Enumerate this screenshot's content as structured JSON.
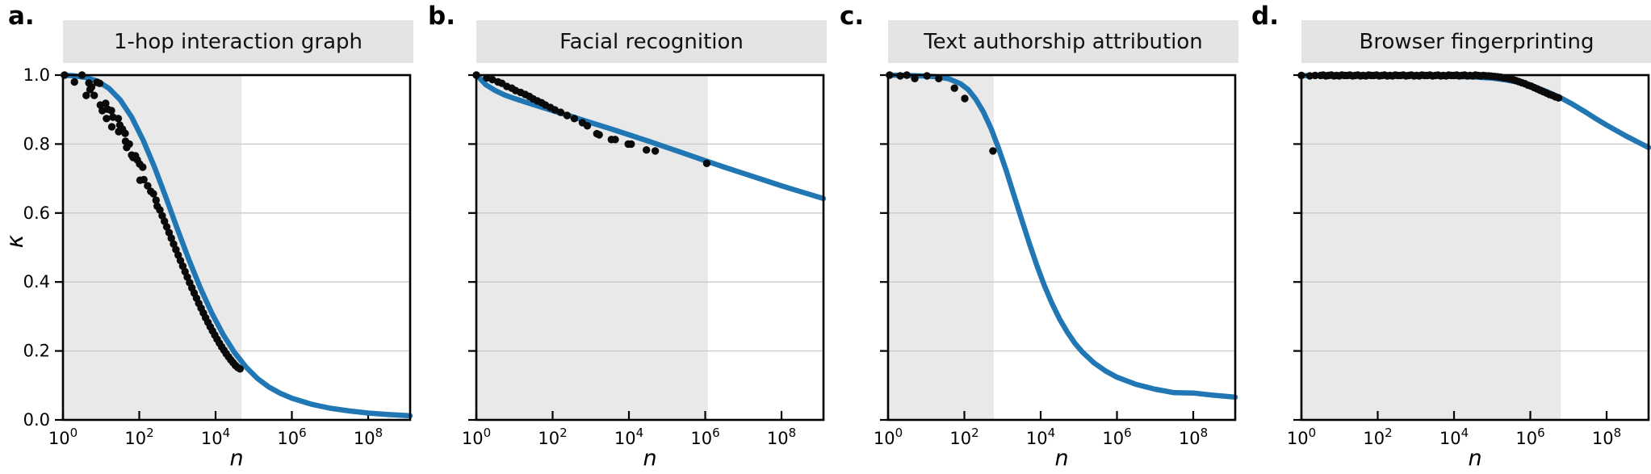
{
  "figure": {
    "background": "#ffffff",
    "colors": {
      "curve": "#2077b4",
      "points": "#0a0a0a",
      "shaded_region": "#e9e9e9",
      "title_box": "#e4e4e4",
      "grid": "#c9c9c9",
      "spine": "#000000",
      "tick_text": "#000000"
    }
  },
  "chart_data": [
    {
      "type": "line+scatter",
      "panel_label": "a.",
      "title": "1-hop interaction graph",
      "xlabel": "n",
      "ylabel": "κ",
      "xscale": "log",
      "xlim_log10": [
        0,
        9.1
      ],
      "ylim": [
        0,
        1
      ],
      "xtick_exponents": [
        0,
        2,
        4,
        6,
        8
      ],
      "ytick_labels": [
        "1.0",
        "0.8",
        "0.6",
        "0.4",
        "0.2",
        "0.0"
      ],
      "shade_end_log10": 4.68,
      "curve_points": [
        [
          0,
          1.0
        ],
        [
          0.3,
          0.998
        ],
        [
          0.6,
          0.993
        ],
        [
          0.9,
          0.983
        ],
        [
          1.2,
          0.962
        ],
        [
          1.5,
          0.928
        ],
        [
          1.8,
          0.878
        ],
        [
          2.1,
          0.812
        ],
        [
          2.4,
          0.733
        ],
        [
          2.7,
          0.645
        ],
        [
          3.0,
          0.553
        ],
        [
          3.3,
          0.465
        ],
        [
          3.6,
          0.383
        ],
        [
          3.9,
          0.31
        ],
        [
          4.2,
          0.247
        ],
        [
          4.5,
          0.195
        ],
        [
          4.8,
          0.153
        ],
        [
          5.1,
          0.12
        ],
        [
          5.4,
          0.095
        ],
        [
          5.7,
          0.077
        ],
        [
          6.0,
          0.063
        ],
        [
          6.5,
          0.046
        ],
        [
          7.0,
          0.034
        ],
        [
          7.5,
          0.026
        ],
        [
          8.0,
          0.02
        ],
        [
          8.5,
          0.016
        ],
        [
          9.1,
          0.012
        ]
      ],
      "scatter_points": [
        [
          0.04,
          1.0
        ],
        [
          0.3,
          0.98
        ],
        [
          0.5,
          1.0
        ],
        [
          0.61,
          0.941
        ],
        [
          0.68,
          0.977
        ],
        [
          0.71,
          0.958
        ],
        [
          0.75,
          0.965
        ],
        [
          0.82,
          0.941
        ],
        [
          0.89,
          0.979
        ],
        [
          0.96,
          0.976
        ],
        [
          0.98,
          0.913
        ],
        [
          1.03,
          0.897
        ],
        [
          1.12,
          0.918
        ],
        [
          1.14,
          0.874
        ],
        [
          1.17,
          0.901
        ],
        [
          1.27,
          0.897
        ],
        [
          1.28,
          0.85
        ],
        [
          1.31,
          0.878
        ],
        [
          1.45,
          0.874
        ],
        [
          1.46,
          0.836
        ],
        [
          1.49,
          0.855
        ],
        [
          1.56,
          0.843
        ],
        [
          1.63,
          0.831
        ],
        [
          1.64,
          0.808
        ],
        [
          1.67,
          0.79
        ],
        [
          1.74,
          0.8
        ],
        [
          1.8,
          0.768
        ],
        [
          1.84,
          0.761
        ],
        [
          1.9,
          0.766
        ],
        [
          1.95,
          0.754
        ],
        [
          2.01,
          0.742
        ],
        [
          2.02,
          0.695
        ],
        [
          2.09,
          0.733
        ],
        [
          2.12,
          0.697
        ],
        [
          2.22,
          0.679
        ],
        [
          2.3,
          0.663
        ],
        [
          2.37,
          0.656
        ],
        [
          2.44,
          0.637
        ],
        [
          2.47,
          0.62
        ],
        [
          2.54,
          0.609
        ],
        [
          2.6,
          0.592
        ],
        [
          2.66,
          0.576
        ],
        [
          2.72,
          0.56
        ],
        [
          2.78,
          0.543
        ],
        [
          2.84,
          0.527
        ],
        [
          2.9,
          0.51
        ],
        [
          2.96,
          0.494
        ],
        [
          3.02,
          0.478
        ],
        [
          3.08,
          0.462
        ],
        [
          3.14,
          0.446
        ],
        [
          3.2,
          0.43
        ],
        [
          3.26,
          0.414
        ],
        [
          3.32,
          0.398
        ],
        [
          3.38,
          0.383
        ],
        [
          3.44,
          0.368
        ],
        [
          3.5,
          0.353
        ],
        [
          3.56,
          0.338
        ],
        [
          3.62,
          0.324
        ],
        [
          3.68,
          0.31
        ],
        [
          3.74,
          0.296
        ],
        [
          3.8,
          0.283
        ],
        [
          3.86,
          0.27
        ],
        [
          3.92,
          0.258
        ],
        [
          3.98,
          0.246
        ],
        [
          4.04,
          0.234
        ],
        [
          4.1,
          0.223
        ],
        [
          4.16,
          0.212
        ],
        [
          4.22,
          0.202
        ],
        [
          4.28,
          0.192
        ],
        [
          4.34,
          0.183
        ],
        [
          4.4,
          0.174
        ],
        [
          4.46,
          0.166
        ],
        [
          4.52,
          0.158
        ],
        [
          4.58,
          0.152
        ],
        [
          4.64,
          0.148
        ]
      ]
    },
    {
      "type": "line+scatter",
      "panel_label": "b.",
      "title": "Facial recognition",
      "xlabel": "n",
      "ylabel": "",
      "xscale": "log",
      "xlim_log10": [
        0,
        9.1
      ],
      "ylim": [
        0,
        1
      ],
      "xtick_exponents": [
        0,
        2,
        4,
        6,
        8
      ],
      "ytick_labels": [],
      "shade_end_log10": 6.07,
      "curve_points": [
        [
          0,
          1.0
        ],
        [
          0.1,
          0.99
        ],
        [
          0.25,
          0.972
        ],
        [
          0.5,
          0.955
        ],
        [
          0.75,
          0.942
        ],
        [
          1.0,
          0.932
        ],
        [
          1.5,
          0.914
        ],
        [
          2.0,
          0.897
        ],
        [
          2.5,
          0.88
        ],
        [
          3.0,
          0.862
        ],
        [
          3.5,
          0.845
        ],
        [
          4.0,
          0.827
        ],
        [
          4.5,
          0.809
        ],
        [
          5.0,
          0.79
        ],
        [
          5.5,
          0.771
        ],
        [
          6.0,
          0.752
        ],
        [
          6.5,
          0.733
        ],
        [
          7.0,
          0.715
        ],
        [
          7.5,
          0.697
        ],
        [
          8.0,
          0.679
        ],
        [
          8.5,
          0.662
        ],
        [
          9.1,
          0.642
        ]
      ],
      "scatter_points": [
        [
          0.0,
          1.0
        ],
        [
          0.27,
          0.992
        ],
        [
          0.42,
          0.987
        ],
        [
          0.57,
          0.98
        ],
        [
          0.67,
          0.976
        ],
        [
          0.8,
          0.967
        ],
        [
          0.93,
          0.962
        ],
        [
          1.03,
          0.955
        ],
        [
          1.16,
          0.95
        ],
        [
          1.28,
          0.944
        ],
        [
          1.39,
          0.938
        ],
        [
          1.49,
          0.931
        ],
        [
          1.6,
          0.925
        ],
        [
          1.71,
          0.92
        ],
        [
          1.81,
          0.913
        ],
        [
          1.94,
          0.906
        ],
        [
          2.06,
          0.899
        ],
        [
          2.21,
          0.892
        ],
        [
          2.38,
          0.883
        ],
        [
          2.57,
          0.874
        ],
        [
          2.78,
          0.862
        ],
        [
          2.91,
          0.853
        ],
        [
          3.16,
          0.83
        ],
        [
          3.22,
          0.827
        ],
        [
          3.54,
          0.813
        ],
        [
          3.64,
          0.813
        ],
        [
          3.98,
          0.8
        ],
        [
          4.06,
          0.8
        ],
        [
          4.46,
          0.783
        ],
        [
          4.69,
          0.78
        ],
        [
          6.04,
          0.744
        ]
      ]
    },
    {
      "type": "line+scatter",
      "panel_label": "c.",
      "title": "Text authorship attribution",
      "xlabel": "n",
      "ylabel": "",
      "xscale": "log",
      "xlim_log10": [
        0,
        9.1
      ],
      "ylim": [
        0,
        1
      ],
      "xtick_exponents": [
        0,
        2,
        4,
        6,
        8
      ],
      "ytick_labels": [],
      "shade_end_log10": 2.77,
      "curve_points": [
        [
          0,
          1.0
        ],
        [
          0.5,
          0.999
        ],
        [
          1.0,
          0.997
        ],
        [
          1.3,
          0.995
        ],
        [
          1.6,
          0.989
        ],
        [
          1.9,
          0.975
        ],
        [
          2.1,
          0.958
        ],
        [
          2.3,
          0.93
        ],
        [
          2.5,
          0.893
        ],
        [
          2.7,
          0.845
        ],
        [
          2.9,
          0.787
        ],
        [
          3.1,
          0.722
        ],
        [
          3.3,
          0.652
        ],
        [
          3.5,
          0.582
        ],
        [
          3.7,
          0.513
        ],
        [
          3.9,
          0.448
        ],
        [
          4.1,
          0.389
        ],
        [
          4.3,
          0.337
        ],
        [
          4.5,
          0.292
        ],
        [
          4.7,
          0.254
        ],
        [
          4.9,
          0.222
        ],
        [
          5.1,
          0.196
        ],
        [
          5.4,
          0.165
        ],
        [
          5.7,
          0.142
        ],
        [
          6.0,
          0.124
        ],
        [
          6.5,
          0.103
        ],
        [
          7.0,
          0.089
        ],
        [
          7.5,
          0.079
        ],
        [
          8.0,
          0.078
        ],
        [
          8.5,
          0.072
        ],
        [
          9.1,
          0.066
        ]
      ],
      "scatter_points": [
        [
          0.04,
          1.0
        ],
        [
          0.32,
          0.998
        ],
        [
          0.49,
          1.0
        ],
        [
          0.7,
          0.99
        ],
        [
          1.02,
          0.998
        ],
        [
          1.33,
          0.99
        ],
        [
          1.74,
          0.962
        ],
        [
          2.01,
          0.932
        ],
        [
          2.75,
          0.78
        ]
      ]
    },
    {
      "type": "line+scatter",
      "panel_label": "d.",
      "title": "Browser fingerprinting",
      "xlabel": "n",
      "ylabel": "",
      "xscale": "log",
      "xlim_log10": [
        0,
        9.1
      ],
      "ylim": [
        0,
        1
      ],
      "xtick_exponents": [
        0,
        2,
        4,
        6,
        8
      ],
      "ytick_labels": [],
      "shade_end_log10": 6.8,
      "curve_points": [
        [
          0,
          0.9985
        ],
        [
          1.0,
          0.998
        ],
        [
          2.0,
          0.998
        ],
        [
          3.0,
          0.9975
        ],
        [
          4.0,
          0.996
        ],
        [
          4.5,
          0.9945
        ],
        [
          5.0,
          0.991
        ],
        [
          5.3,
          0.987
        ],
        [
          5.6,
          0.981
        ],
        [
          5.9,
          0.973
        ],
        [
          6.2,
          0.962
        ],
        [
          6.5,
          0.949
        ],
        [
          6.8,
          0.934
        ],
        [
          7.1,
          0.916
        ],
        [
          7.4,
          0.896
        ],
        [
          7.7,
          0.875
        ],
        [
          8.0,
          0.855
        ],
        [
          8.5,
          0.824
        ],
        [
          9.1,
          0.79
        ]
      ],
      "scatter_points": [
        [
          0.0,
          0.999
        ],
        [
          0.22,
          0.998
        ],
        [
          0.36,
          0.999
        ],
        [
          0.5,
          0.999
        ],
        [
          0.57,
          1.0
        ],
        [
          0.64,
          0.998
        ],
        [
          0.71,
          0.999
        ],
        [
          0.78,
          1.0
        ],
        [
          0.85,
          0.998
        ],
        [
          0.92,
          0.999
        ],
        [
          0.99,
          0.998
        ],
        [
          1.06,
          1.0
        ],
        [
          1.13,
          0.999
        ],
        [
          1.2,
          0.999
        ],
        [
          1.27,
          1.0
        ],
        [
          1.34,
          0.998
        ],
        [
          1.41,
          0.999
        ],
        [
          1.48,
          1.0
        ],
        [
          1.55,
          0.998
        ],
        [
          1.62,
          0.999
        ],
        [
          1.69,
          0.998
        ],
        [
          1.76,
          1.0
        ],
        [
          1.83,
          0.999
        ],
        [
          1.9,
          0.999
        ],
        [
          1.97,
          1.0
        ],
        [
          2.04,
          0.998
        ],
        [
          2.11,
          0.999
        ],
        [
          2.18,
          1.0
        ],
        [
          2.25,
          0.998
        ],
        [
          2.32,
          0.999
        ],
        [
          2.39,
          0.998
        ],
        [
          2.46,
          1.0
        ],
        [
          2.53,
          0.999
        ],
        [
          2.6,
          0.999
        ],
        [
          2.67,
          1.0
        ],
        [
          2.74,
          0.998
        ],
        [
          2.81,
          0.999
        ],
        [
          2.88,
          1.0
        ],
        [
          2.95,
          0.998
        ],
        [
          3.02,
          0.999
        ],
        [
          3.09,
          0.998
        ],
        [
          3.16,
          1.0
        ],
        [
          3.23,
          0.999
        ],
        [
          3.3,
          0.999
        ],
        [
          3.37,
          1.0
        ],
        [
          3.44,
          0.998
        ],
        [
          3.51,
          0.999
        ],
        [
          3.58,
          1.0
        ],
        [
          3.65,
          0.998
        ],
        [
          3.72,
          0.999
        ],
        [
          3.79,
          0.998
        ],
        [
          3.86,
          1.0
        ],
        [
          3.93,
          0.999
        ],
        [
          4.0,
          0.999
        ],
        [
          4.07,
          1.0
        ],
        [
          4.14,
          0.998
        ],
        [
          4.21,
          0.999
        ],
        [
          4.28,
          1.0
        ],
        [
          4.35,
          0.998
        ],
        [
          4.42,
          0.999
        ],
        [
          4.49,
          0.998
        ],
        [
          4.56,
          1.0
        ],
        [
          4.63,
          0.999
        ],
        [
          4.7,
          0.998
        ],
        [
          4.77,
          0.999
        ],
        [
          4.84,
          0.998
        ],
        [
          4.91,
          0.998
        ],
        [
          4.98,
          0.997
        ],
        [
          5.06,
          0.996
        ],
        [
          5.14,
          0.995
        ],
        [
          5.22,
          0.994
        ],
        [
          5.3,
          0.992
        ],
        [
          5.38,
          0.991
        ],
        [
          5.46,
          0.989
        ],
        [
          5.54,
          0.987
        ],
        [
          5.62,
          0.984
        ],
        [
          5.7,
          0.981
        ],
        [
          5.78,
          0.978
        ],
        [
          5.86,
          0.975
        ],
        [
          5.94,
          0.971
        ],
        [
          6.02,
          0.968
        ],
        [
          6.1,
          0.964
        ],
        [
          6.18,
          0.96
        ],
        [
          6.26,
          0.956
        ],
        [
          6.34,
          0.952
        ],
        [
          6.42,
          0.948
        ],
        [
          6.5,
          0.944
        ],
        [
          6.58,
          0.941
        ],
        [
          6.66,
          0.937
        ],
        [
          6.74,
          0.934
        ]
      ]
    }
  ]
}
